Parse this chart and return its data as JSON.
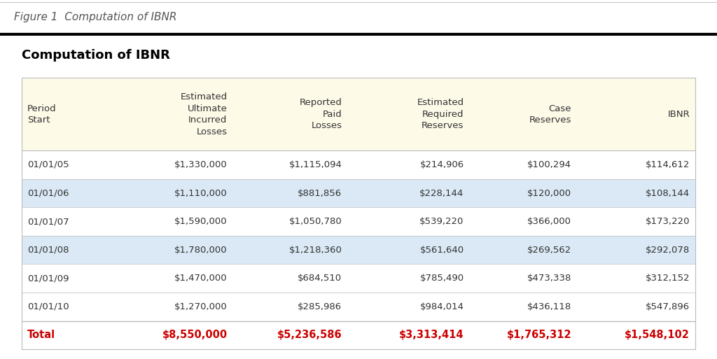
{
  "figure_label": "Figure 1  Computation of IBNR",
  "title": "Computation of IBNR",
  "col_headers": [
    "Period\nStart",
    "Estimated\nUltimate\nIncurred\nLosses",
    "Reported\nPaid\nLosses",
    "Estimated\nRequired\nReserves",
    "Case\nReserves",
    "IBNR"
  ],
  "rows": [
    [
      "01/01/05",
      "$1,330,000",
      "$1,115,094",
      "$214,906",
      "$100,294",
      "$114,612"
    ],
    [
      "01/01/06",
      "$1,110,000",
      "$881,856",
      "$228,144",
      "$120,000",
      "$108,144"
    ],
    [
      "01/01/07",
      "$1,590,000",
      "$1,050,780",
      "$539,220",
      "$366,000",
      "$173,220"
    ],
    [
      "01/01/08",
      "$1,780,000",
      "$1,218,360",
      "$561,640",
      "$269,562",
      "$292,078"
    ],
    [
      "01/01/09",
      "$1,470,000",
      "$684,510",
      "$785,490",
      "$473,338",
      "$312,152"
    ],
    [
      "01/01/10",
      "$1,270,000",
      "$285,986",
      "$984,014",
      "$436,118",
      "$547,896"
    ]
  ],
  "total_row": [
    "Total",
    "$8,550,000",
    "$5,236,586",
    "$3,313,414",
    "$1,765,312",
    "$1,548,102"
  ],
  "shaded_rows": [
    1,
    3
  ],
  "header_bg": "#FDFAE8",
  "shaded_bg": "#DAE9F5",
  "white_bg": "#FFFFFF",
  "total_color": "#CC0000",
  "text_color": "#333333",
  "figure_label_color": "#555555",
  "title_color": "#000000",
  "outer_bg": "#FFFFFF",
  "border_color": "#BBBBBB"
}
